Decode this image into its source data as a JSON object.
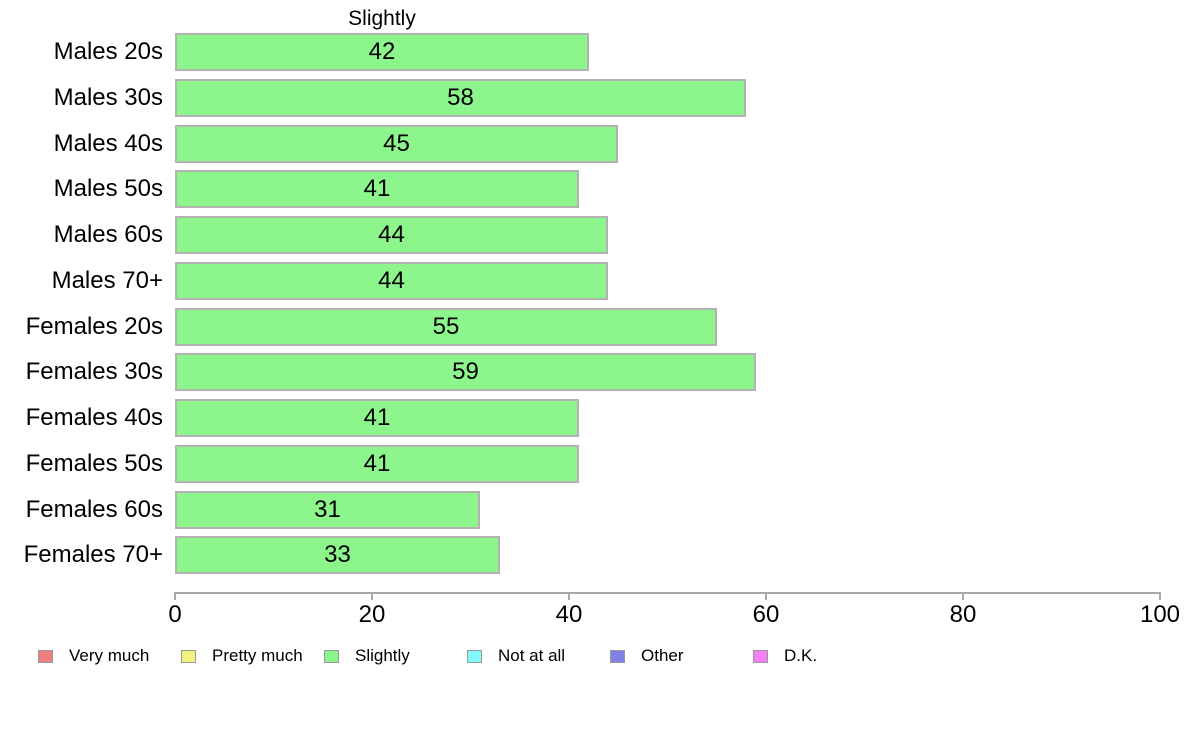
{
  "chart_data": {
    "type": "bar",
    "orientation": "horizontal",
    "title": "Slightly",
    "categories": [
      "Males 20s",
      "Males 30s",
      "Males 40s",
      "Males 50s",
      "Males 60s",
      "Males 70+",
      "Females 20s",
      "Females 30s",
      "Females 40s",
      "Females 50s",
      "Females 60s",
      "Females 70+"
    ],
    "values": [
      42,
      58,
      45,
      41,
      44,
      44,
      55,
      59,
      41,
      41,
      31,
      33
    ],
    "value_labels_shown": true,
    "xlabel": "",
    "ylabel": "",
    "xlim": [
      0,
      100
    ],
    "x_ticks": [
      0,
      20,
      40,
      60,
      80,
      100
    ],
    "grid": false,
    "bar_fill_color": "#8cf58c",
    "bar_border_color": "#b2b2b2",
    "axis_color": "#a8a8a8",
    "text_color": "#000000",
    "legend": {
      "position": "bottom",
      "items": [
        {
          "label": "Very much",
          "color": "#f08080"
        },
        {
          "label": "Pretty much",
          "color": "#f2f27e"
        },
        {
          "label": "Slightly",
          "color": "#8cf58c"
        },
        {
          "label": "Not at all",
          "color": "#82f9f9"
        },
        {
          "label": "Other",
          "color": "#8080e6"
        },
        {
          "label": "D.K.",
          "color": "#f580f5"
        }
      ]
    }
  }
}
